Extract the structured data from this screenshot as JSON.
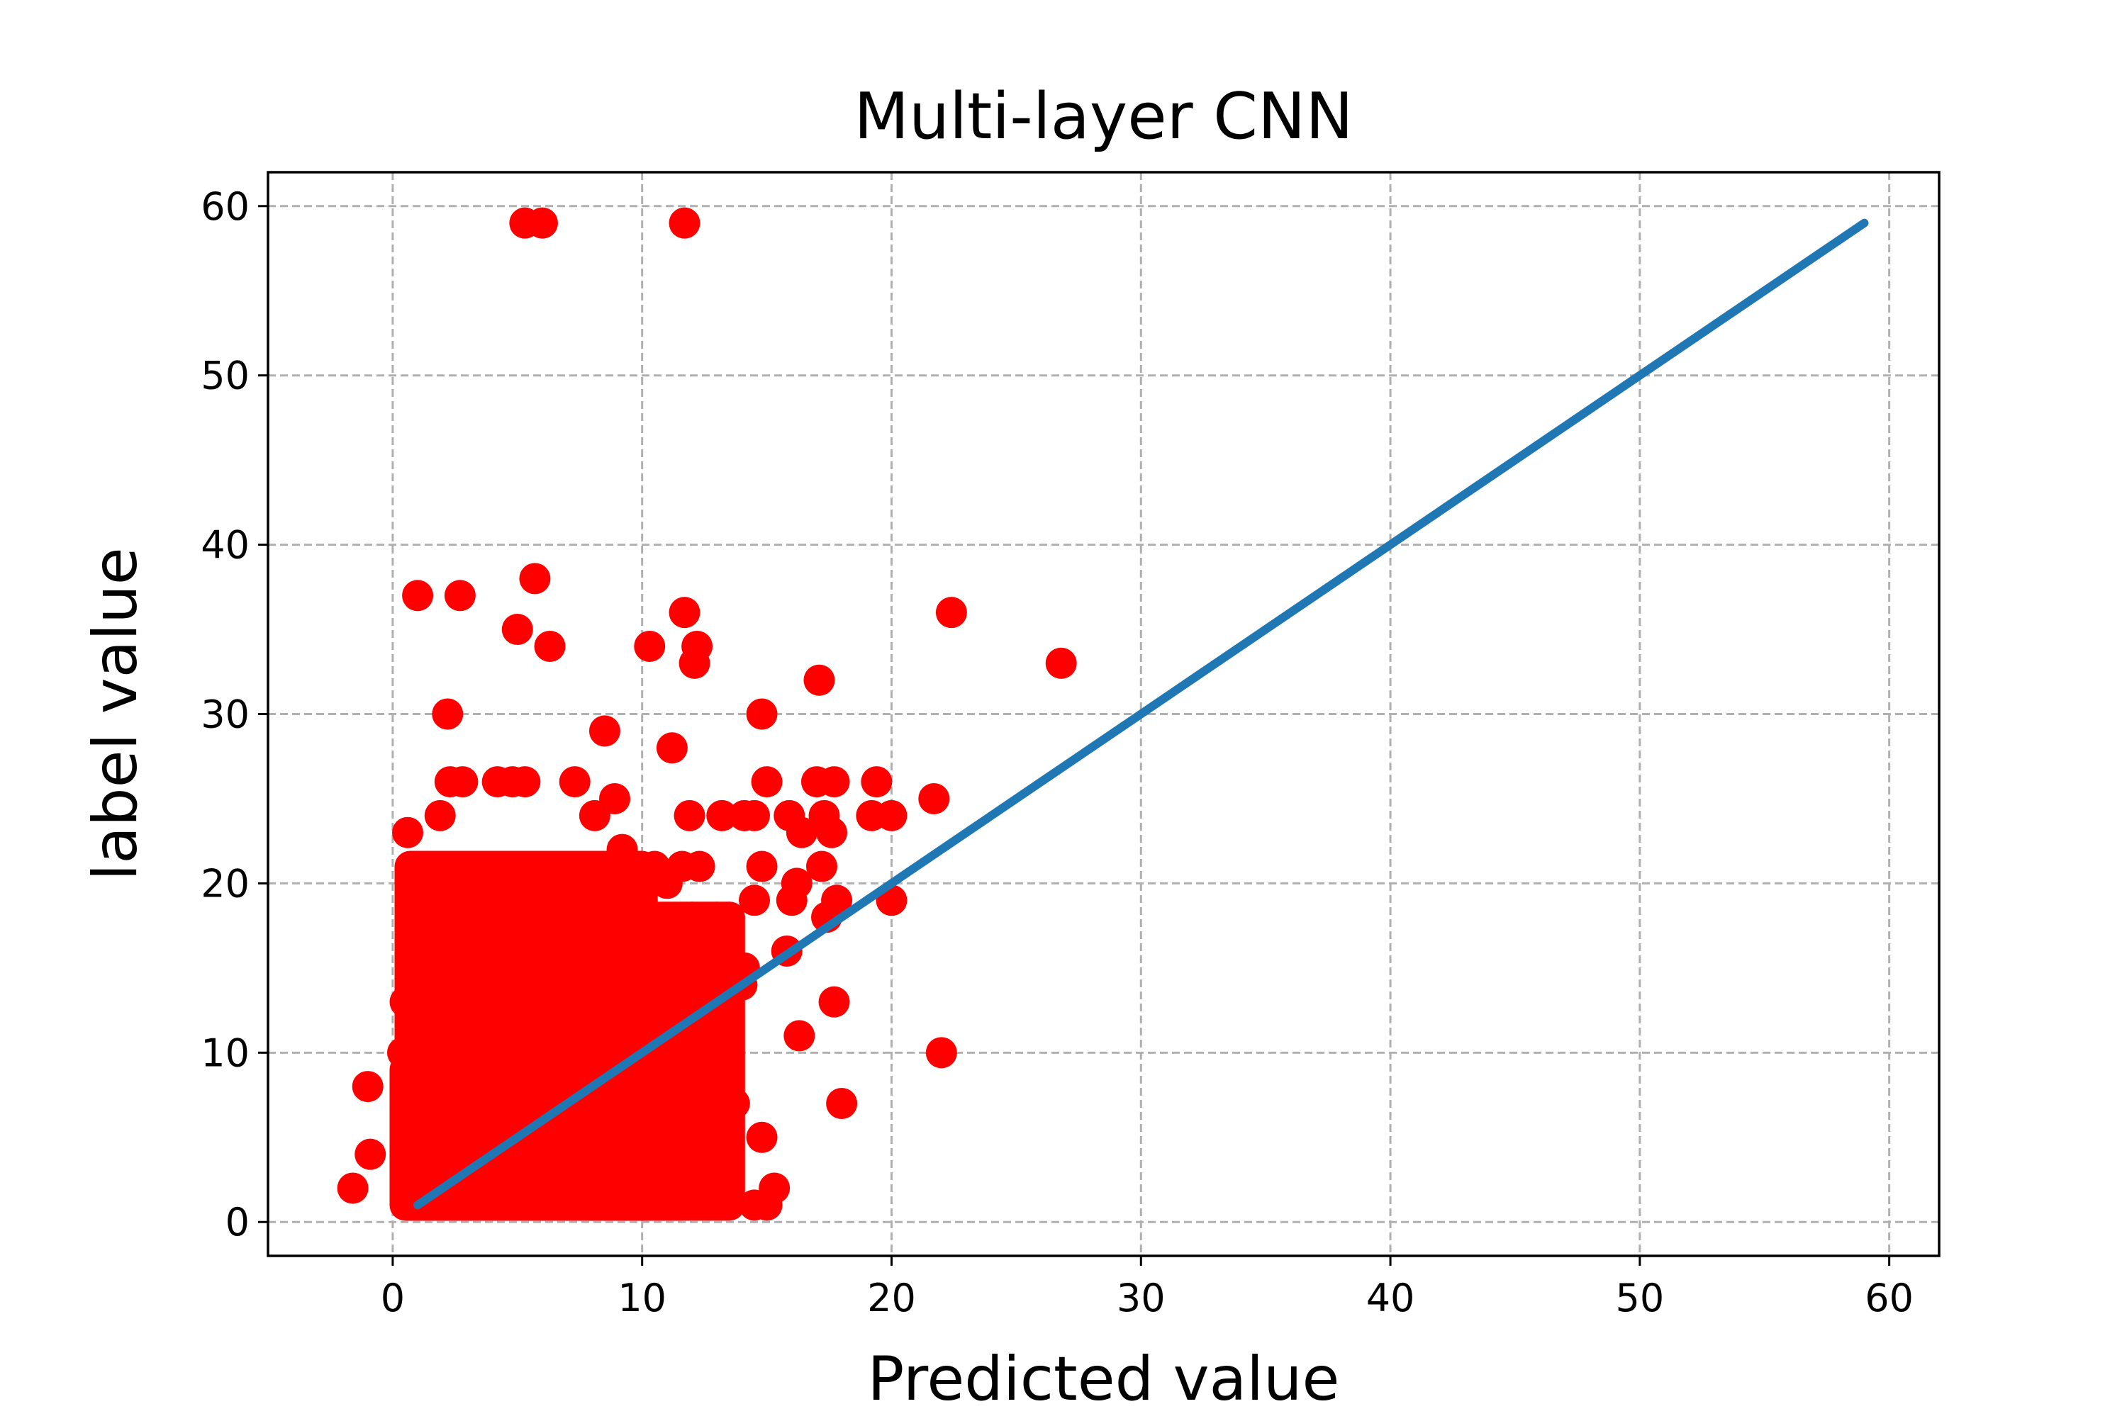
{
  "chart_data": {
    "type": "scatter",
    "title": "Multi-layer CNN",
    "xlabel": "Predicted value",
    "ylabel": "label value",
    "xlim": [
      -5,
      62
    ],
    "ylim": [
      -2,
      62
    ],
    "xticks": [
      0,
      10,
      20,
      30,
      40,
      50,
      60
    ],
    "yticks": [
      0,
      10,
      20,
      30,
      40,
      50,
      60
    ],
    "xtick_labels": [
      "0",
      "10",
      "20",
      "30",
      "40",
      "50",
      "60"
    ],
    "ytick_labels": [
      "0",
      "10",
      "20",
      "30",
      "40",
      "50",
      "60"
    ],
    "grid": true,
    "legend": "none",
    "colors": {
      "scatter": "#ff0000",
      "line": "#1f77b4",
      "grid": "#b0b0b0"
    },
    "dense_regions": [
      {
        "x_range": [
          0.7,
          10
        ],
        "y_range": [
          1,
          21
        ]
      },
      {
        "x_range": [
          0.5,
          11.5
        ],
        "y_range": [
          1,
          9
        ]
      },
      {
        "x_range": [
          8,
          13.5
        ],
        "y_range": [
          1,
          18
        ]
      }
    ],
    "series": [
      {
        "type": "scatter",
        "points": [
          [
            -1.6,
            2
          ],
          [
            -1,
            8
          ],
          [
            -0.9,
            4
          ],
          [
            0.6,
            1
          ],
          [
            0.4,
            10
          ],
          [
            0.5,
            13
          ],
          [
            0.6,
            23
          ],
          [
            1.0,
            37
          ],
          [
            1.2,
            16
          ],
          [
            1.2,
            18
          ],
          [
            1.9,
            24
          ],
          [
            2.2,
            30
          ],
          [
            2.3,
            26
          ],
          [
            2.7,
            37
          ],
          [
            2.8,
            26
          ],
          [
            5.0,
            35
          ],
          [
            5.3,
            59
          ],
          [
            5.7,
            38
          ],
          [
            6.0,
            59
          ],
          [
            6.3,
            34
          ],
          [
            4.2,
            26
          ],
          [
            4.8,
            26
          ],
          [
            5.3,
            26
          ],
          [
            7.3,
            26
          ],
          [
            8.1,
            24
          ],
          [
            8.5,
            29
          ],
          [
            8.9,
            25
          ],
          [
            9.2,
            22
          ],
          [
            10.3,
            34
          ],
          [
            11.2,
            28
          ],
          [
            11.7,
            59
          ],
          [
            11.7,
            36
          ],
          [
            12.2,
            34
          ],
          [
            12.1,
            33
          ],
          [
            11.6,
            21
          ],
          [
            12.3,
            21
          ],
          [
            11.9,
            24
          ],
          [
            13.2,
            24
          ],
          [
            14.1,
            24
          ],
          [
            14.5,
            24
          ],
          [
            14.8,
            30
          ],
          [
            15.0,
            26
          ],
          [
            14.8,
            21
          ],
          [
            14.5,
            19
          ],
          [
            15.9,
            24
          ],
          [
            16.4,
            23
          ],
          [
            16.2,
            20
          ],
          [
            16.0,
            19
          ],
          [
            17.1,
            32
          ],
          [
            17.0,
            26
          ],
          [
            17.7,
            26
          ],
          [
            17.3,
            24
          ],
          [
            17.6,
            23
          ],
          [
            17.2,
            21
          ],
          [
            17.8,
            19
          ],
          [
            17.4,
            18
          ],
          [
            19.4,
            26
          ],
          [
            19.2,
            24
          ],
          [
            20.0,
            24
          ],
          [
            20.0,
            19
          ],
          [
            21.7,
            25
          ],
          [
            22.4,
            36
          ],
          [
            26.8,
            33
          ],
          [
            22.0,
            10
          ],
          [
            17.7,
            13
          ],
          [
            18.0,
            7
          ],
          [
            16.3,
            11
          ],
          [
            15.8,
            16
          ],
          [
            14.0,
            14
          ],
          [
            14.1,
            15
          ],
          [
            12.8,
            12
          ],
          [
            13.0,
            8
          ],
          [
            13.7,
            7
          ],
          [
            14.8,
            5
          ],
          [
            15.3,
            2
          ],
          [
            14.5,
            1
          ],
          [
            15.0,
            1
          ],
          [
            13.0,
            2
          ],
          [
            12.7,
            1
          ],
          [
            12.0,
            10
          ],
          [
            12.5,
            4
          ],
          [
            12.0,
            18
          ],
          [
            13.0,
            18
          ],
          [
            13.5,
            18
          ],
          [
            13.0,
            16
          ],
          [
            10.5,
            21
          ],
          [
            10.0,
            19
          ],
          [
            11.0,
            20
          ]
        ]
      },
      {
        "type": "line",
        "points": [
          [
            1,
            1
          ],
          [
            59,
            59
          ]
        ]
      }
    ]
  }
}
